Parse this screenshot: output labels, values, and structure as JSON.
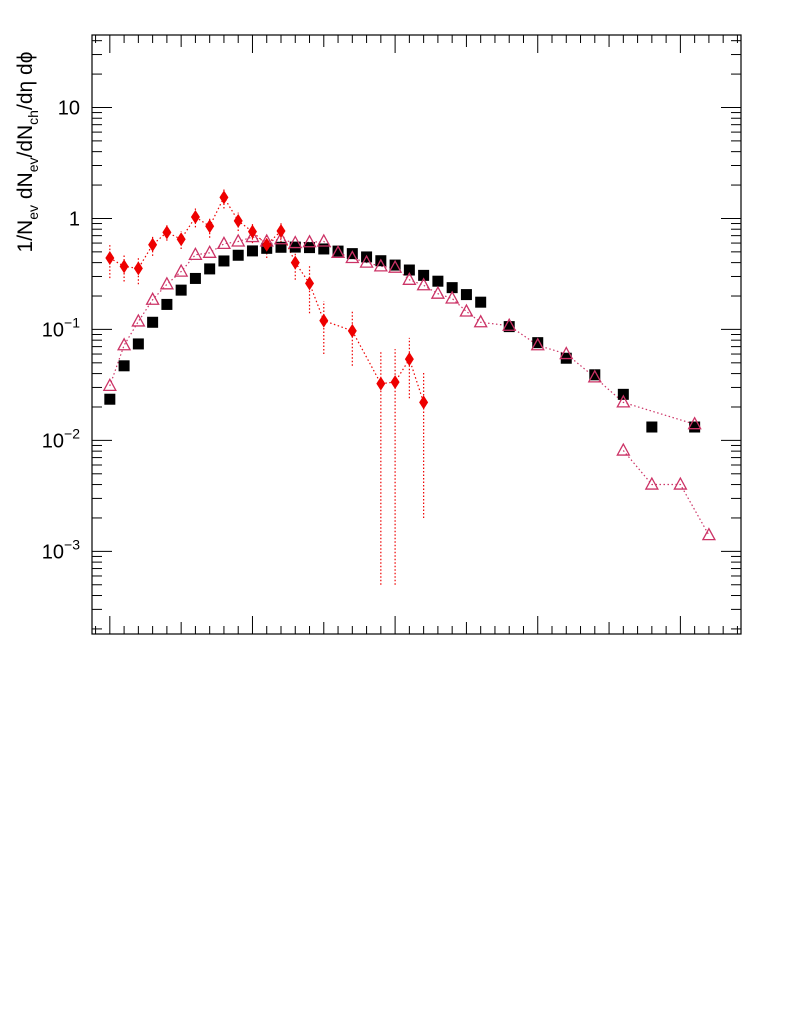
{
  "chart_data": {
    "type": "scatter",
    "title": "",
    "xlabel": "",
    "ylabel_parts": {
      "p1": "1/N",
      "s1": "ev",
      "p2": " dN",
      "s2": "ev",
      "p3": "/dN",
      "s3": "ch",
      "p4": "/dη dϕ"
    },
    "y_scale": "log",
    "ylim": [
      0.00018,
      45
    ],
    "xlim": [
      0,
      45.5
    ],
    "grid": false,
    "legend": "none",
    "y_ticks": [
      {
        "value": 0.001,
        "base": "10",
        "exp": "−3"
      },
      {
        "value": 0.01,
        "base": "10",
        "exp": "−2"
      },
      {
        "value": 0.1,
        "base": "10",
        "exp": "−1"
      },
      {
        "value": 1,
        "base": "1",
        "exp": ""
      },
      {
        "value": 10,
        "base": "10",
        "exp": ""
      }
    ],
    "x_major_ticks": [
      1.25,
      11.25,
      21.25,
      31.25,
      41.25
    ],
    "series": [
      {
        "marker": "filled-square",
        "color": "#000000",
        "line": "none",
        "x": [
          1.25,
          2.25,
          3.25,
          4.25,
          5.25,
          6.25,
          7.25,
          8.25,
          9.25,
          10.25,
          11.25,
          12.25,
          13.25,
          14.25,
          15.25,
          16.25,
          17.25,
          18.25,
          19.25,
          20.25,
          21.25,
          22.25,
          23.25,
          24.25,
          25.25,
          26.25,
          27.25,
          29.25,
          31.25,
          33.25,
          35.25,
          37.25,
          39.25,
          42.25
        ],
        "y": [
          0.0235,
          0.047,
          0.074,
          0.116,
          0.168,
          0.226,
          0.288,
          0.351,
          0.414,
          0.466,
          0.51,
          0.538,
          0.55,
          0.552,
          0.546,
          0.531,
          0.508,
          0.482,
          0.45,
          0.416,
          0.38,
          0.343,
          0.307,
          0.272,
          0.238,
          0.206,
          0.176,
          0.106,
          0.076,
          0.055,
          0.039,
          0.026,
          0.0132,
          0.0132
        ]
      },
      {
        "marker": "open-triangle",
        "color": "#cc3366",
        "line": "dotted",
        "x": [
          1.25,
          2.25,
          3.25,
          4.25,
          5.25,
          6.25,
          7.25,
          8.25,
          9.25,
          10.25,
          11.25,
          12.25,
          13.25,
          14.25,
          15.25,
          16.25,
          17.25,
          18.25,
          19.25,
          20.25,
          21.25,
          22.25,
          23.25,
          24.25,
          25.25,
          26.25,
          27.25,
          29.25,
          31.25,
          33.25,
          35.25,
          37.25,
          42.25
        ],
        "y": [
          0.031,
          0.072,
          0.118,
          0.185,
          0.255,
          0.332,
          0.47,
          0.49,
          0.59,
          0.62,
          0.68,
          0.62,
          0.65,
          0.6,
          0.61,
          0.62,
          0.49,
          0.44,
          0.4,
          0.37,
          0.36,
          0.28,
          0.25,
          0.21,
          0.19,
          0.145,
          0.116,
          0.108,
          0.072,
          0.06,
          0.037,
          0.022,
          0.014
        ],
        "x_tail": [
          37.25,
          39.25,
          41.25,
          43.25
        ],
        "y_tail": [
          0.0081,
          0.004,
          0.004,
          0.0014
        ]
      },
      {
        "marker": "filled-diamond",
        "color": "#ee0000",
        "line": "dotted",
        "errors": "dotted",
        "x": [
          1.25,
          2.25,
          3.25,
          4.25,
          5.25,
          6.25,
          7.25,
          8.25,
          9.25,
          10.25,
          11.25,
          12.25,
          13.25,
          14.25,
          15.25,
          16.25,
          18.25,
          20.25,
          21.25,
          22.25,
          23.25
        ],
        "y": [
          0.44,
          0.37,
          0.355,
          0.58,
          0.75,
          0.65,
          1.03,
          0.85,
          1.55,
          0.95,
          0.76,
          0.58,
          0.77,
          0.4,
          0.26,
          0.12,
          0.097,
          0.0325,
          0.0335,
          0.054,
          0.022
        ],
        "err_low": [
          0.15,
          0.1,
          0.1,
          0.12,
          0.12,
          0.12,
          0.2,
          0.18,
          0.32,
          0.18,
          0.16,
          0.14,
          0.16,
          0.12,
          0.12,
          0.06,
          0.05,
          0.032,
          0.033,
          0.03,
          0.02
        ],
        "err_high": [
          0.15,
          0.1,
          0.1,
          0.12,
          0.12,
          0.12,
          0.2,
          0.18,
          0.32,
          0.18,
          0.16,
          0.14,
          0.16,
          0.12,
          0.12,
          0.06,
          0.05,
          0.032,
          0.033,
          0.03,
          0.02
        ]
      }
    ]
  }
}
